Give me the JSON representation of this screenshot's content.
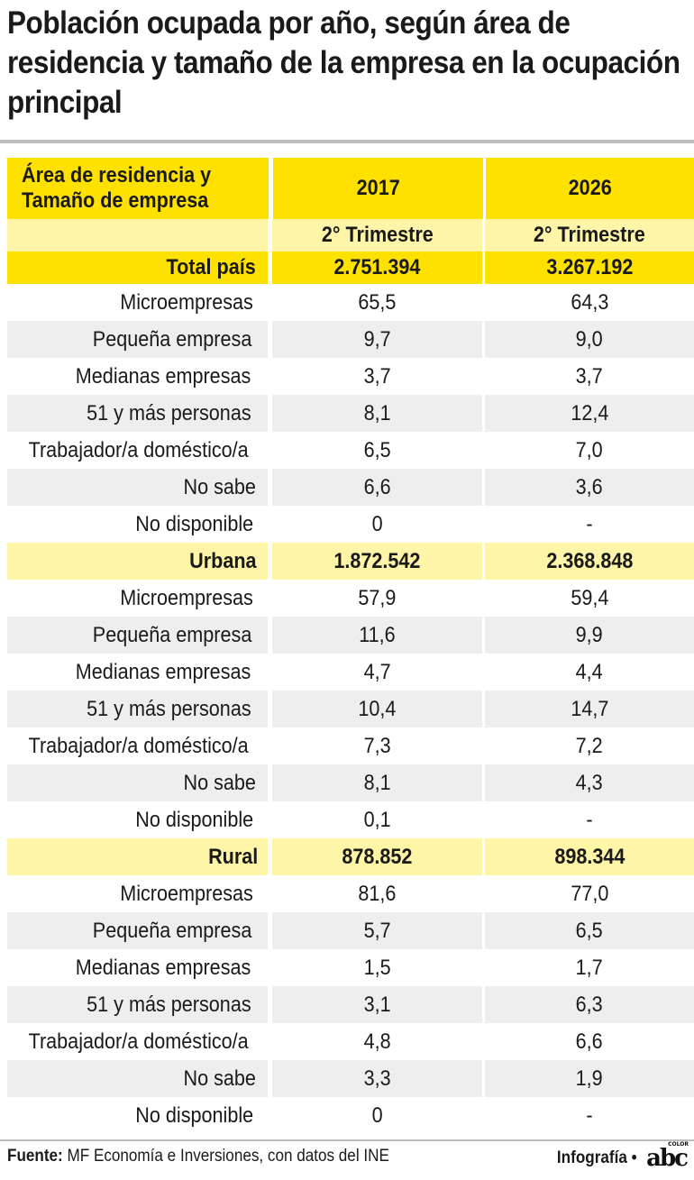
{
  "title": "Población ocupada por año, según área de residencia y tamaño de la empresa en la ocupación principal",
  "table": {
    "header_label": "Área de residencia y Tamaño de empresa",
    "years": [
      "2017",
      "2026"
    ],
    "subheaders": [
      "2° Trimestre",
      "2° Trimestre"
    ]
  },
  "sections": [
    {
      "name": "Total país",
      "totals": [
        "2.751.394",
        "3.267.192"
      ],
      "rows": [
        {
          "label": "Microempresas",
          "values": [
            "65,5",
            "64,3"
          ]
        },
        {
          "label": "Pequeña empresa",
          "values": [
            "9,7",
            "9,0"
          ]
        },
        {
          "label": "Medianas empresas",
          "values": [
            "3,7",
            "3,7"
          ]
        },
        {
          "label": "51 y más personas",
          "values": [
            "8,1",
            "12,4"
          ]
        },
        {
          "label": "Trabajador/a doméstico/a",
          "values": [
            "6,5",
            "7,0"
          ]
        },
        {
          "label": "No sabe",
          "values": [
            "6,6",
            "3,6"
          ]
        },
        {
          "label": "No disponible",
          "values": [
            "0",
            "-"
          ]
        }
      ]
    },
    {
      "name": "Urbana",
      "totals": [
        "1.872.542",
        "2.368.848"
      ],
      "rows": [
        {
          "label": "Microempresas",
          "values": [
            "57,9",
            "59,4"
          ]
        },
        {
          "label": "Pequeña empresa",
          "values": [
            "11,6",
            "9,9"
          ]
        },
        {
          "label": "Medianas empresas",
          "values": [
            "4,7",
            "4,4"
          ]
        },
        {
          "label": "51 y más personas",
          "values": [
            "10,4",
            "14,7"
          ]
        },
        {
          "label": "Trabajador/a doméstico/a",
          "values": [
            "7,3",
            "7,2"
          ]
        },
        {
          "label": "No sabe",
          "values": [
            "8,1",
            "4,3"
          ]
        },
        {
          "label": "No disponible",
          "values": [
            "0,1",
            "-"
          ]
        }
      ]
    },
    {
      "name": "Rural",
      "totals": [
        "878.852",
        "898.344"
      ],
      "rows": [
        {
          "label": "Microempresas",
          "values": [
            "81,6",
            "77,0"
          ]
        },
        {
          "label": "Pequeña empresa",
          "values": [
            "5,7",
            "6,5"
          ]
        },
        {
          "label": "Medianas empresas",
          "values": [
            "1,5",
            "1,7"
          ]
        },
        {
          "label": "51 y más personas",
          "values": [
            "3,1",
            "6,3"
          ]
        },
        {
          "label": "Trabajador/a doméstico/a",
          "values": [
            "4,8",
            "6,6"
          ]
        },
        {
          "label": "No sabe",
          "values": [
            "3,3",
            "1,9"
          ]
        },
        {
          "label": "No disponible",
          "values": [
            "0",
            "-"
          ]
        }
      ]
    }
  ],
  "footer": {
    "source_label": "Fuente:",
    "source_text": " MF Economía e Inversiones, con datos del INE",
    "credit": "Infografía •",
    "logo": "abc",
    "logo_sup": "COLOR"
  },
  "colors": {
    "header_yellow": "#ffe100",
    "light_yellow": "#fff5a8",
    "row_gray": "#eeeeee"
  },
  "chart_data": {
    "type": "table",
    "title": "Población ocupada por año, según área de residencia y tamaño de la empresa en la ocupación principal",
    "columns": [
      "Área de residencia y Tamaño de empresa",
      "2017 (2° Trimestre)",
      "2026 (2° Trimestre)"
    ],
    "rows": [
      [
        "Total país",
        "2.751.394",
        "3.267.192"
      ],
      [
        "Microempresas",
        "65,5",
        "64,3"
      ],
      [
        "Pequeña empresa",
        "9,7",
        "9,0"
      ],
      [
        "Medianas empresas",
        "3,7",
        "3,7"
      ],
      [
        "51 y más personas",
        "8,1",
        "12,4"
      ],
      [
        "Trabajador/a doméstico/a",
        "6,5",
        "7,0"
      ],
      [
        "No sabe",
        "6,6",
        "3,6"
      ],
      [
        "No disponible",
        "0",
        "-"
      ],
      [
        "Urbana",
        "1.872.542",
        "2.368.848"
      ],
      [
        "Microempresas",
        "57,9",
        "59,4"
      ],
      [
        "Pequeña empresa",
        "11,6",
        "9,9"
      ],
      [
        "Medianas empresas",
        "4,7",
        "4,4"
      ],
      [
        "51 y más personas",
        "10,4",
        "14,7"
      ],
      [
        "Trabajador/a doméstico/a",
        "7,3",
        "7,2"
      ],
      [
        "No sabe",
        "8,1",
        "4,3"
      ],
      [
        "No disponible",
        "0,1",
        "-"
      ],
      [
        "Rural",
        "878.852",
        "898.344"
      ],
      [
        "Microempresas",
        "81,6",
        "77,0"
      ],
      [
        "Pequeña empresa",
        "5,7",
        "6,5"
      ],
      [
        "Medianas empresas",
        "1,5",
        "1,7"
      ],
      [
        "51 y más personas",
        "3,1",
        "6,3"
      ],
      [
        "Trabajador/a doméstico/a",
        "4,8",
        "6,6"
      ],
      [
        "No sabe",
        "3,3",
        "1,9"
      ],
      [
        "No disponible",
        "0",
        "-"
      ]
    ]
  }
}
